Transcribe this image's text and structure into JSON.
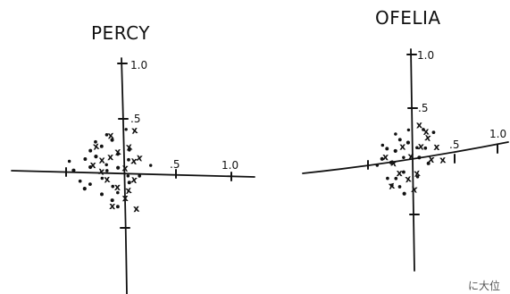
{
  "chart_data": [
    {
      "type": "scatter",
      "title": "PERCY",
      "xlim": [
        -1.0,
        1.0
      ],
      "ylim": [
        -1.0,
        1.0
      ],
      "x_tick_labels": [
        ".5",
        "1.0"
      ],
      "y_tick_labels": [
        ".5",
        "1.0"
      ],
      "grid": false,
      "markers": {
        "dot": {
          "x": [
            -0.5,
            -0.45,
            -0.35,
            -0.3,
            -0.25,
            -0.2,
            -0.15,
            -0.1,
            -0.05,
            0.05,
            -0.4,
            -0.3,
            -0.2,
            -0.1,
            -0.05,
            0.05,
            0.15,
            0.25,
            -0.3,
            -0.2,
            -0.15,
            -0.05,
            0.05,
            -0.25,
            -0.15,
            -0.05,
            0.05,
            -0.35,
            -0.1,
            0.02
          ],
          "y": [
            0.1,
            0.02,
            0.12,
            0.2,
            0.15,
            0.25,
            0.08,
            0.3,
            0.18,
            0.22,
            -0.08,
            -0.1,
            -0.05,
            -0.12,
            -0.18,
            -0.08,
            -0.02,
            0.08,
            0.05,
            -0.2,
            0.02,
            0.05,
            0.12,
            0.28,
            0.35,
            -0.3,
            -0.02,
            -0.15,
            -0.25,
            0.4
          ]
        },
        "x": {
          "x": [
            -0.28,
            -0.2,
            -0.12,
            -0.05,
            0.02,
            0.1,
            -0.15,
            -0.05,
            0.05,
            -0.25,
            -0.12,
            0.05,
            0.15,
            -0.1,
            0.02,
            0.1,
            -0.2,
            0.1,
            0.12
          ],
          "y": [
            0.08,
            0.02,
            0.15,
            0.2,
            0.05,
            0.12,
            -0.05,
            -0.12,
            -0.15,
            0.25,
            0.35,
            0.25,
            0.15,
            -0.3,
            -0.22,
            -0.05,
            0.12,
            0.4,
            -0.32
          ]
        }
      }
    },
    {
      "type": "scatter",
      "title": "OFELIA",
      "xlim": [
        -1.0,
        1.0
      ],
      "ylim": [
        -1.0,
        1.0
      ],
      "x_tick_labels": [
        ".5",
        "1.0"
      ],
      "y_tick_labels": [
        ".5",
        "1.0"
      ],
      "grid": false,
      "markers": {
        "dot": {
          "x": [
            -0.42,
            -0.35,
            -0.3,
            -0.25,
            -0.2,
            -0.15,
            -0.1,
            -0.05,
            0.05,
            -0.3,
            -0.2,
            -0.1,
            0.05,
            0.12,
            -0.35,
            -0.25,
            -0.15,
            -0.05,
            0.08,
            0.18,
            -0.2,
            -0.1,
            0.15,
            0.25
          ],
          "y": [
            0.05,
            0.1,
            0.18,
            0.05,
            0.15,
            0.25,
            0.08,
            0.2,
            0.15,
            -0.08,
            -0.1,
            -0.05,
            -0.12,
            0.3,
            0.22,
            -0.15,
            -0.18,
            0.32,
            0.05,
            -0.02,
            0.3,
            -0.25,
            0.12,
            0.25
          ]
        },
        "x": {
          "x": [
            -0.32,
            -0.22,
            -0.12,
            -0.02,
            0.1,
            0.22,
            0.35,
            -0.15,
            -0.05,
            0.05,
            0.15,
            -0.25,
            0.18,
            0.28,
            0.08,
            0.02
          ],
          "y": [
            0.12,
            0.05,
            0.18,
            0.08,
            0.15,
            0.02,
            0.0,
            -0.05,
            -0.12,
            -0.08,
            0.28,
            -0.15,
            0.22,
            0.12,
            0.35,
            -0.22
          ]
        }
      }
    }
  ],
  "handwritten_note": "に大位",
  "style": {
    "ink": "#111111",
    "paper": "#ffffff"
  }
}
